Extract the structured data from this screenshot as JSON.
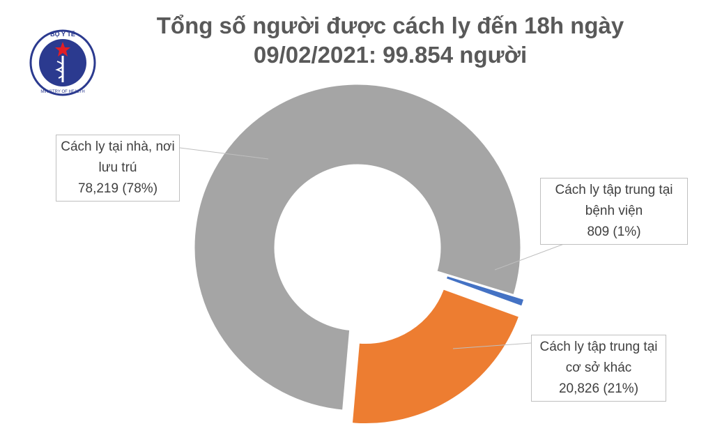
{
  "logo": {
    "top_text": "BỘ Y TẾ",
    "bottom_text": "MINISTRY OF HEALTH"
  },
  "chart_data": {
    "type": "donut",
    "title": "Tổng số người được cách ly đến 18h ngày 09/02/2021: 99.854 người",
    "categories": [
      "Cách ly tại nhà, nơi lưu trú",
      "Cách ly tập trung tại bệnh viện",
      "Cách ly tập trung tại cơ sở khác"
    ],
    "values": [
      78219,
      809,
      20826
    ],
    "value_labels": [
      "78,219 (78%)",
      "809 (1%)",
      "20,826 (21%)"
    ],
    "colors": [
      "#a5a5a5",
      "#4472c4",
      "#ed7d31"
    ]
  }
}
